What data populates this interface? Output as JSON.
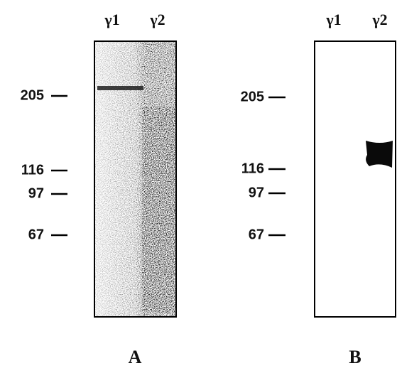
{
  "panels": [
    {
      "label": "A",
      "lanes": [
        "γ1",
        "γ2"
      ],
      "markers": [
        205,
        116,
        97,
        67
      ]
    },
    {
      "label": "B",
      "lanes": [
        "γ1",
        "γ2"
      ],
      "markers": [
        205,
        116,
        97,
        67
      ]
    }
  ]
}
